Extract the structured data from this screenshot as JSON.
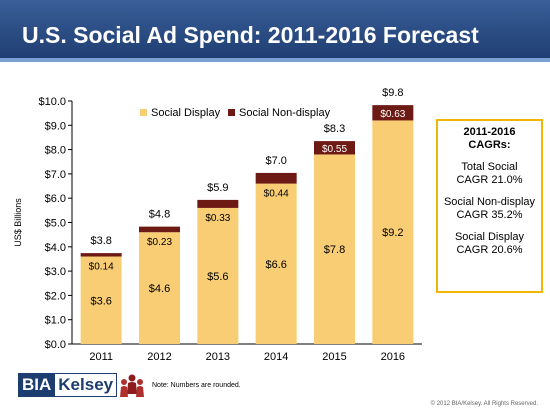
{
  "title": "U.S. Social Ad Spend: 2011-2016 Forecast",
  "cagr_box": {
    "heading_line1": "2011-2016",
    "heading_line2": "CAGRs:",
    "total_line1": "Total Social",
    "total_line2": "CAGR 21.0%",
    "nondisplay_line1": "Social Non-display",
    "nondisplay_line2": "CAGR 35.2%",
    "display_line1": "Social Display",
    "display_line2": "CAGR 20.6%"
  },
  "footer": {
    "logo_bia": "BIA",
    "logo_kelsey": "Kelsey",
    "note": "Note: Numbers are rounded.",
    "copyright": "© 2012 BIA/Kelsey. All Rights Reserved."
  },
  "colors": {
    "display": "#f9cd74",
    "nondisplay": "#6e1a14",
    "title_bar": "#1d3c70",
    "cagr_border": "#f2b500"
  },
  "chart_data": {
    "type": "bar",
    "stacked": true,
    "categories": [
      "2011",
      "2012",
      "2013",
      "2014",
      "2015",
      "2016"
    ],
    "series": [
      {
        "name": "Social Display",
        "values": [
          3.6,
          4.6,
          5.6,
          6.6,
          7.8,
          9.2
        ],
        "labels": [
          "$3.6",
          "$4.6",
          "$5.6",
          "$6.6",
          "$7.8",
          "$9.2"
        ]
      },
      {
        "name": "Social Non-display",
        "values": [
          0.14,
          0.23,
          0.33,
          0.44,
          0.55,
          0.63
        ],
        "labels": [
          "$0.14",
          "$0.23",
          "$0.33",
          "$0.44",
          "$0.55",
          "$0.63"
        ]
      }
    ],
    "totals": [
      3.8,
      4.8,
      5.9,
      7.0,
      8.3,
      9.8
    ],
    "total_labels": [
      "$3.8",
      "$4.8",
      "$5.9",
      "$7.0",
      "$8.3",
      "$9.8"
    ],
    "ylabel": "US$ Billions",
    "ylim": [
      0,
      10
    ],
    "yticks": [
      0,
      1,
      2,
      3,
      4,
      5,
      6,
      7,
      8,
      9,
      10
    ],
    "ytick_labels": [
      "$0.0",
      "$1.0",
      "$2.0",
      "$3.0",
      "$4.0",
      "$5.0",
      "$6.0",
      "$7.0",
      "$8.0",
      "$9.0",
      "$10.0"
    ],
    "legend_position": "top",
    "grid": false
  }
}
